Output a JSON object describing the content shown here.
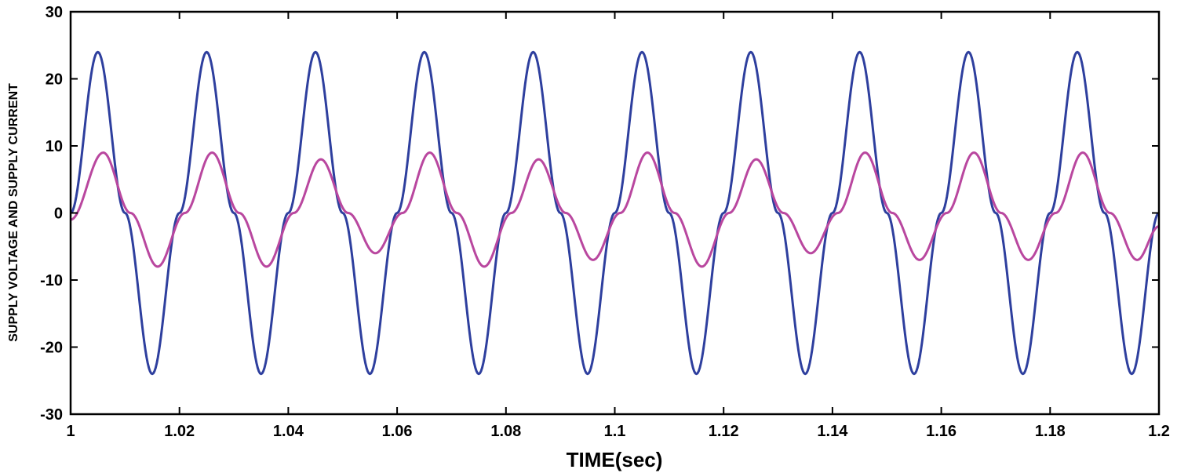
{
  "chart_data": {
    "type": "line",
    "title": "",
    "xlabel": "TIME(sec)",
    "ylabel": "SUPPLY VOLTAGE AND SUPPLY CURRENT",
    "xlim": [
      1,
      1.2
    ],
    "ylim": [
      -30,
      30
    ],
    "xticks": [
      1,
      1.02,
      1.04,
      1.06,
      1.08,
      1.1,
      1.12,
      1.14,
      1.16,
      1.18,
      1.2
    ],
    "xtick_labels": [
      "1",
      "1.02",
      "1.04",
      "1.06",
      "1.08",
      "1.1",
      "1.12",
      "1.14",
      "1.16",
      "1.18",
      "1.2"
    ],
    "yticks": [
      -30,
      -20,
      -10,
      0,
      10,
      20,
      30
    ],
    "ytick_labels": [
      "-30",
      "-20",
      "-10",
      "0",
      "10",
      "20",
      "30"
    ],
    "grid": false,
    "legend": false,
    "series": [
      {
        "color": "#2e3f9e",
        "x": [
          1.0,
          1.005,
          1.01,
          1.015,
          1.02,
          1.025,
          1.03,
          1.035,
          1.04,
          1.045,
          1.05,
          1.055,
          1.06,
          1.065,
          1.07,
          1.075,
          1.08,
          1.085,
          1.09,
          1.095,
          1.1,
          1.105,
          1.11,
          1.115,
          1.12,
          1.125,
          1.13,
          1.135,
          1.14,
          1.145,
          1.15,
          1.155,
          1.16,
          1.165,
          1.17,
          1.175,
          1.18,
          1.185,
          1.19,
          1.195,
          1.2
        ],
        "y": [
          0,
          24,
          0,
          -24,
          0,
          24,
          0,
          -24,
          0,
          24,
          0,
          -24,
          0,
          24,
          0,
          -24,
          0,
          24,
          0,
          -24,
          0,
          24,
          0,
          -24,
          0,
          24,
          0,
          -24,
          0,
          24,
          0,
          -24,
          0,
          24,
          0,
          -24,
          0,
          24,
          0,
          -24,
          0
        ]
      },
      {
        "color": "#b9479f",
        "x": [
          1.0,
          1.006,
          1.011,
          1.016,
          1.021,
          1.026,
          1.031,
          1.036,
          1.041,
          1.046,
          1.051,
          1.056,
          1.061,
          1.066,
          1.071,
          1.076,
          1.081,
          1.086,
          1.091,
          1.096,
          1.101,
          1.106,
          1.111,
          1.116,
          1.121,
          1.126,
          1.131,
          1.136,
          1.141,
          1.146,
          1.151,
          1.156,
          1.161,
          1.166,
          1.171,
          1.176,
          1.181,
          1.186,
          1.191,
          1.196,
          1.2
        ],
        "y": [
          -1,
          9,
          0,
          -8,
          0,
          9,
          0,
          -8,
          0,
          8,
          0,
          -6,
          0,
          9,
          0,
          -8,
          0,
          8,
          0,
          -7,
          0,
          9,
          0,
          -8,
          0,
          8,
          0,
          -6,
          0,
          9,
          0,
          -7,
          0,
          9,
          0,
          -7,
          0,
          9,
          0,
          -7,
          -2
        ]
      }
    ]
  }
}
